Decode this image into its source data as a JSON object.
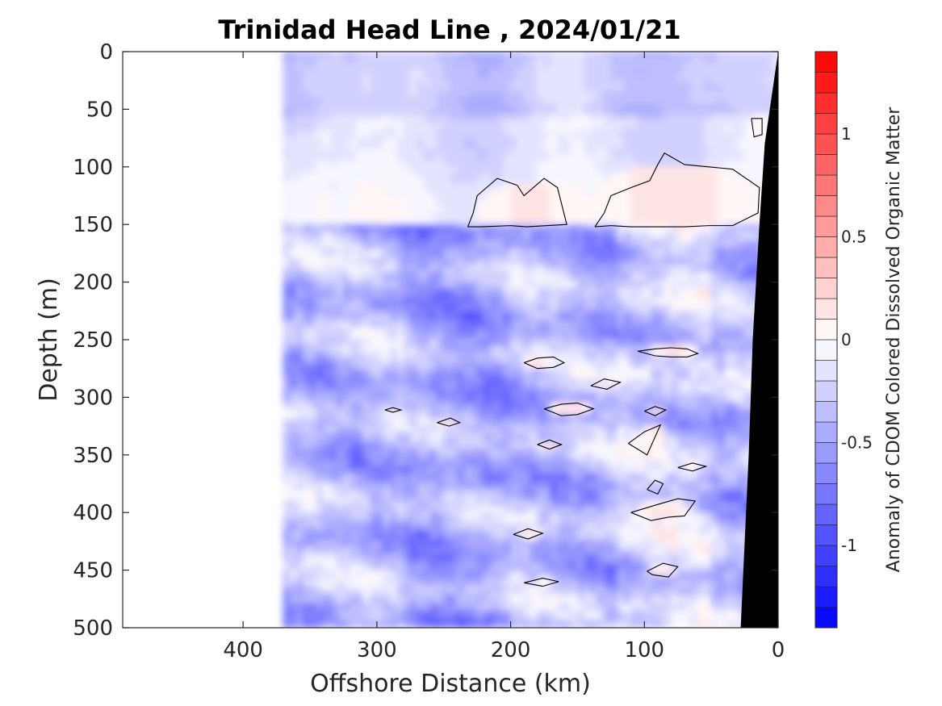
{
  "chart_data": {
    "type": "heatmap",
    "title": "Trinidad Head Line , 2024/01/21",
    "xlabel": "Offshore Distance (km)",
    "ylabel": "Depth (m)",
    "xlim": [
      490,
      0
    ],
    "ylim": [
      0,
      500
    ],
    "x_reversed": true,
    "y_reversed": true,
    "xticks": [
      400,
      300,
      200,
      100,
      0
    ],
    "xtick_labels": [
      "400",
      "300",
      "200",
      "100",
      "0"
    ],
    "yticks": [
      0,
      50,
      100,
      150,
      200,
      250,
      300,
      350,
      400,
      450,
      500
    ],
    "ytick_labels": [
      "0",
      "50",
      "100",
      "150",
      "200",
      "250",
      "300",
      "350",
      "400",
      "450",
      "500"
    ],
    "data_extent_x_km": [
      370,
      0
    ],
    "upper_layer_bottom_depth_m": 152,
    "colorbar": {
      "label": "Anomaly of CDOM Colored Dissolved Organic Matter",
      "range": [
        -1.4,
        1.4
      ],
      "levels": 28,
      "ticks": [
        1,
        0.5,
        0,
        -0.5,
        -1
      ],
      "tick_labels": [
        "1",
        "0.5",
        "0",
        "-0.5",
        "-1"
      ],
      "colormap": "blue-white-red",
      "low_color": "#0000ff",
      "mid_color": "#ffffff",
      "high_color": "#ff0000"
    },
    "bathymetry": {
      "color": "#000000",
      "bottom_profile": [
        {
          "depth": 0,
          "x": 0
        },
        {
          "depth": 80,
          "x": 10
        },
        {
          "depth": 150,
          "x": 14
        },
        {
          "depth": 250,
          "x": 19
        },
        {
          "depth": 350,
          "x": 22
        },
        {
          "depth": 500,
          "x": 28
        }
      ]
    },
    "zero_contours": [
      {
        "x": [
          232,
          228,
          225,
          210,
          195,
          190,
          175,
          165,
          158,
          188,
          200,
          222,
          232
        ],
        "y": [
          152,
          140,
          125,
          110,
          116,
          125,
          110,
          118,
          150,
          152,
          151,
          152,
          152
        ]
      },
      {
        "x": [
          137,
          130,
          125,
          110,
          96,
          90,
          85,
          70,
          52,
          34,
          14,
          15,
          34,
          52,
          70,
          90,
          110,
          125,
          137
        ],
        "y": [
          152,
          140,
          125,
          118,
          112,
          98,
          88,
          98,
          100,
          102,
          118,
          140,
          151,
          151,
          152,
          152,
          152,
          151,
          152
        ]
      },
      {
        "x": [
          20,
          12,
          12,
          18,
          20
        ],
        "y": [
          58,
          58,
          72,
          74,
          58
        ]
      },
      {
        "x": [
          190,
          180,
          168,
          160,
          168,
          180,
          190
        ],
        "y": [
          270,
          266,
          265,
          270,
          274,
          275,
          270
        ]
      },
      {
        "x": [
          105,
          92,
          80,
          68,
          60,
          68,
          80,
          92,
          105
        ],
        "y": [
          260,
          258,
          257,
          258,
          262,
          265,
          265,
          264,
          260
        ]
      },
      {
        "x": [
          175,
          162,
          150,
          138,
          150,
          162,
          175
        ],
        "y": [
          310,
          306,
          305,
          310,
          315,
          316,
          310
        ]
      },
      {
        "x": [
          140,
          130,
          118,
          128,
          140
        ],
        "y": [
          290,
          284,
          287,
          293,
          290
        ]
      },
      {
        "x": [
          112,
          100,
          88,
          98,
          112
        ],
        "y": [
          340,
          330,
          324,
          350,
          340
        ]
      },
      {
        "x": [
          198,
          187,
          176,
          187,
          198
        ],
        "y": [
          419,
          414,
          418,
          423,
          419
        ]
      },
      {
        "x": [
          110,
          90,
          75,
          62,
          70,
          82,
          95,
          110
        ],
        "y": [
          400,
          393,
          388,
          390,
          403,
          404,
          407,
          400
        ]
      },
      {
        "x": [
          98,
          86,
          75,
          82,
          94,
          98
        ],
        "y": [
          451,
          444,
          447,
          456,
          454,
          451
        ]
      },
      {
        "x": [
          190,
          176,
          164,
          176,
          190
        ],
        "y": [
          461,
          457,
          460,
          464,
          461
        ]
      },
      {
        "x": [
          98,
          92,
          86,
          90,
          98
        ],
        "y": [
          380,
          372,
          375,
          384,
          380
        ]
      },
      {
        "x": [
          180,
          171,
          162,
          171,
          180
        ],
        "y": [
          341,
          337,
          341,
          345,
          341
        ]
      },
      {
        "x": [
          100,
          92,
          84,
          92,
          100
        ],
        "y": [
          312,
          308,
          311,
          316,
          312
        ]
      },
      {
        "x": [
          75,
          64,
          54,
          64,
          75
        ],
        "y": [
          361,
          357,
          360,
          364,
          361
        ]
      },
      {
        "x": [
          255,
          245,
          238,
          246,
          255
        ],
        "y": [
          322,
          318,
          322,
          325,
          322
        ]
      },
      {
        "x": [
          294,
          288,
          282,
          288,
          294
        ],
        "y": [
          311,
          309,
          311,
          313,
          311
        ]
      }
    ]
  }
}
